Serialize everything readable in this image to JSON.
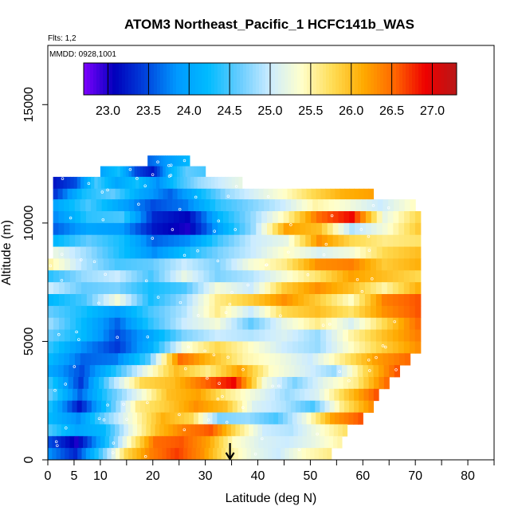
{
  "chart_data": {
    "type": "heatmap",
    "title": "ATOM3 Northeast_Pacific_1 HCFC141b_WAS",
    "subtitle_flights": "Flts: 1,2",
    "subtitle_dates": "MMDD: 0928,1001",
    "xlabel": "Latitude (deg N)",
    "ylabel": "Altitude (m)",
    "xlim": [
      0,
      85
    ],
    "ylim": [
      0,
      17500
    ],
    "x_ticks": [
      0,
      5,
      10,
      20,
      30,
      40,
      50,
      60,
      70,
      80
    ],
    "x_minor_ticks": [
      15,
      25,
      35,
      45,
      55,
      65,
      75,
      85
    ],
    "y_ticks": [
      0,
      5000,
      10000,
      15000
    ],
    "colorbar": {
      "range": [
        22.7,
        27.3
      ],
      "ticks": [
        23.0,
        23.5,
        24.0,
        24.5,
        25.0,
        25.5,
        26.0,
        26.5,
        27.0
      ],
      "colors": [
        "#7f00ff",
        "#0000bb",
        "#0044dd",
        "#0099ff",
        "#00bbff",
        "#66ccff",
        "#ccecff",
        "#ffffcc",
        "#ffdd55",
        "#ffaa00",
        "#ff6600",
        "#ee0000",
        "#b81818"
      ]
    },
    "marker_latitude": 34.7,
    "rows": [
      {
        "alt": 12600,
        "lat": [
          19,
          27
        ],
        "values": [
          23.6,
          23.8,
          24.0,
          24.2
        ]
      },
      {
        "alt": 12150,
        "lat": [
          10,
          30
        ],
        "values": [
          24.0,
          24.3,
          23.5,
          23.2,
          24.1,
          24.6,
          24.5
        ]
      },
      {
        "alt": 11700,
        "lat": [
          1,
          37
        ],
        "values": [
          23.2,
          23.5,
          24.5,
          24.0,
          24.3,
          23.8,
          24.4,
          24.8,
          25.0,
          25.2
        ]
      },
      {
        "alt": 11200,
        "lat": [
          1,
          62
        ],
        "values": [
          23.4,
          24.3,
          24.6,
          24.0,
          23.6,
          24.2,
          24.8,
          25.1,
          25.4,
          25.8,
          26.1,
          26.2
        ]
      },
      {
        "alt": 10750,
        "lat": [
          1,
          70
        ],
        "values": [
          24.0,
          24.5,
          24.0,
          23.5,
          23.7,
          24.4,
          24.7,
          25.0,
          25.5,
          25.3,
          25.0,
          25.4
        ]
      },
      {
        "alt": 10250,
        "lat": [
          1,
          71
        ],
        "values": [
          23.8,
          24.4,
          24.5,
          23.3,
          23.1,
          24.2,
          24.8,
          25.5,
          26.5,
          26.9,
          25.2,
          25.8
        ]
      },
      {
        "alt": 9750,
        "lat": [
          1,
          71
        ],
        "values": [
          23.6,
          24.0,
          23.9,
          23.2,
          23.0,
          24.0,
          24.8,
          26.2,
          26.0,
          24.9,
          25.3,
          25.9
        ]
      },
      {
        "alt": 9250,
        "lat": [
          1,
          71
        ],
        "values": [
          24.2,
          24.6,
          24.3,
          23.6,
          23.8,
          24.5,
          25.0,
          25.2,
          26.3,
          25.8,
          25.6,
          25.7
        ]
      },
      {
        "alt": 8750,
        "lat": [
          1,
          71
        ],
        "values": [
          25.2,
          24.8,
          24.3,
          23.8,
          24.3,
          24.7,
          25.0,
          25.4,
          25.1,
          25.3,
          25.8,
          26.0
        ]
      },
      {
        "alt": 8250,
        "lat": [
          0,
          71
        ],
        "values": [
          25.5,
          24.9,
          24.5,
          24.6,
          25.0,
          24.7,
          25.3,
          25.6,
          26.3,
          26.4,
          25.9,
          26.1
        ]
      },
      {
        "alt": 7750,
        "lat": [
          0,
          71
        ],
        "values": [
          24.4,
          24.8,
          25.0,
          24.5,
          25.2,
          24.7,
          24.9,
          25.3,
          25.7,
          26.2,
          26.0,
          25.8
        ]
      },
      {
        "alt": 7250,
        "lat": [
          0,
          71
        ],
        "values": [
          25.0,
          24.6,
          24.7,
          24.3,
          24.5,
          25.3,
          25.0,
          25.9,
          26.3,
          26.0,
          25.5,
          26.1
        ]
      },
      {
        "alt": 6750,
        "lat": [
          0,
          71
        ],
        "values": [
          24.2,
          24.5,
          25.3,
          24.3,
          24.8,
          25.6,
          25.9,
          26.3,
          25.9,
          25.4,
          26.4,
          26.6
        ]
      },
      {
        "alt": 6250,
        "lat": [
          0,
          71
        ],
        "values": [
          24.6,
          24.3,
          23.9,
          24.5,
          24.9,
          25.6,
          25.0,
          25.8,
          26.0,
          25.7,
          26.3,
          26.6
        ]
      },
      {
        "alt": 5750,
        "lat": [
          0,
          71
        ],
        "values": [
          24.8,
          24.2,
          23.6,
          24.4,
          25.0,
          25.3,
          24.6,
          25.2,
          25.6,
          25.1,
          25.8,
          26.5
        ]
      },
      {
        "alt": 5250,
        "lat": [
          0,
          71
        ],
        "values": [
          24.6,
          24.2,
          23.5,
          24.0,
          24.7,
          25.0,
          24.9,
          25.1,
          24.8,
          25.5,
          26.0,
          26.4
        ]
      },
      {
        "alt": 4750,
        "lat": [
          0,
          71
        ],
        "values": [
          24.4,
          23.8,
          23.4,
          24.1,
          25.3,
          25.8,
          25.4,
          25.0,
          24.8,
          25.4,
          25.9,
          26.3
        ]
      },
      {
        "alt": 4250,
        "lat": [
          0,
          69
        ],
        "values": [
          24.2,
          23.6,
          23.7,
          24.5,
          26.5,
          26.0,
          25.5,
          25.3,
          25.0,
          25.6,
          26.2,
          26.5
        ]
      },
      {
        "alt": 3750,
        "lat": [
          0,
          67
        ],
        "values": [
          24.0,
          23.5,
          24.3,
          25.2,
          26.0,
          25.6,
          26.2,
          25.4,
          25.1,
          24.8,
          25.8,
          26.6
        ]
      },
      {
        "alt": 3250,
        "lat": [
          0,
          65
        ],
        "values": [
          24.4,
          23.4,
          24.8,
          25.8,
          26.0,
          26.5,
          26.9,
          25.3,
          24.7,
          25.2,
          25.6,
          26.5
        ]
      },
      {
        "alt": 2750,
        "lat": [
          0,
          63
        ],
        "values": [
          24.6,
          23.6,
          24.5,
          25.2,
          26.0,
          26.2,
          25.6,
          25.2,
          24.8,
          25.1,
          25.9,
          26.6
        ]
      },
      {
        "alt": 2250,
        "lat": [
          0,
          62
        ],
        "values": [
          24.3,
          23.2,
          24.4,
          25.6,
          25.9,
          26.3,
          26.0,
          25.1,
          24.9,
          24.5,
          25.6,
          26.3
        ]
      },
      {
        "alt": 1750,
        "lat": [
          0,
          60
        ],
        "values": [
          24.2,
          23.8,
          24.7,
          25.4,
          26.1,
          25.8,
          24.7,
          24.8,
          24.5,
          25.2,
          26.2,
          26.6
        ]
      },
      {
        "alt": 1250,
        "lat": [
          0,
          57
        ],
        "values": [
          24.5,
          24.0,
          24.2,
          25.2,
          26.0,
          26.4,
          26.6,
          25.7,
          25.0,
          24.9,
          25.3,
          25.7
        ]
      },
      {
        "alt": 750,
        "lat": [
          0,
          56
        ],
        "values": [
          23.5,
          23.0,
          24.1,
          25.4,
          26.5,
          26.6,
          26.2,
          25.4,
          25.1,
          25.0,
          25.2,
          25.5
        ]
      },
      {
        "alt": 250,
        "lat": [
          0,
          54
        ],
        "values": [
          23.8,
          23.3,
          24.5,
          25.8,
          26.4,
          26.7,
          26.3,
          25.6,
          25.2,
          25.0,
          25.4,
          25.6
        ]
      }
    ]
  }
}
